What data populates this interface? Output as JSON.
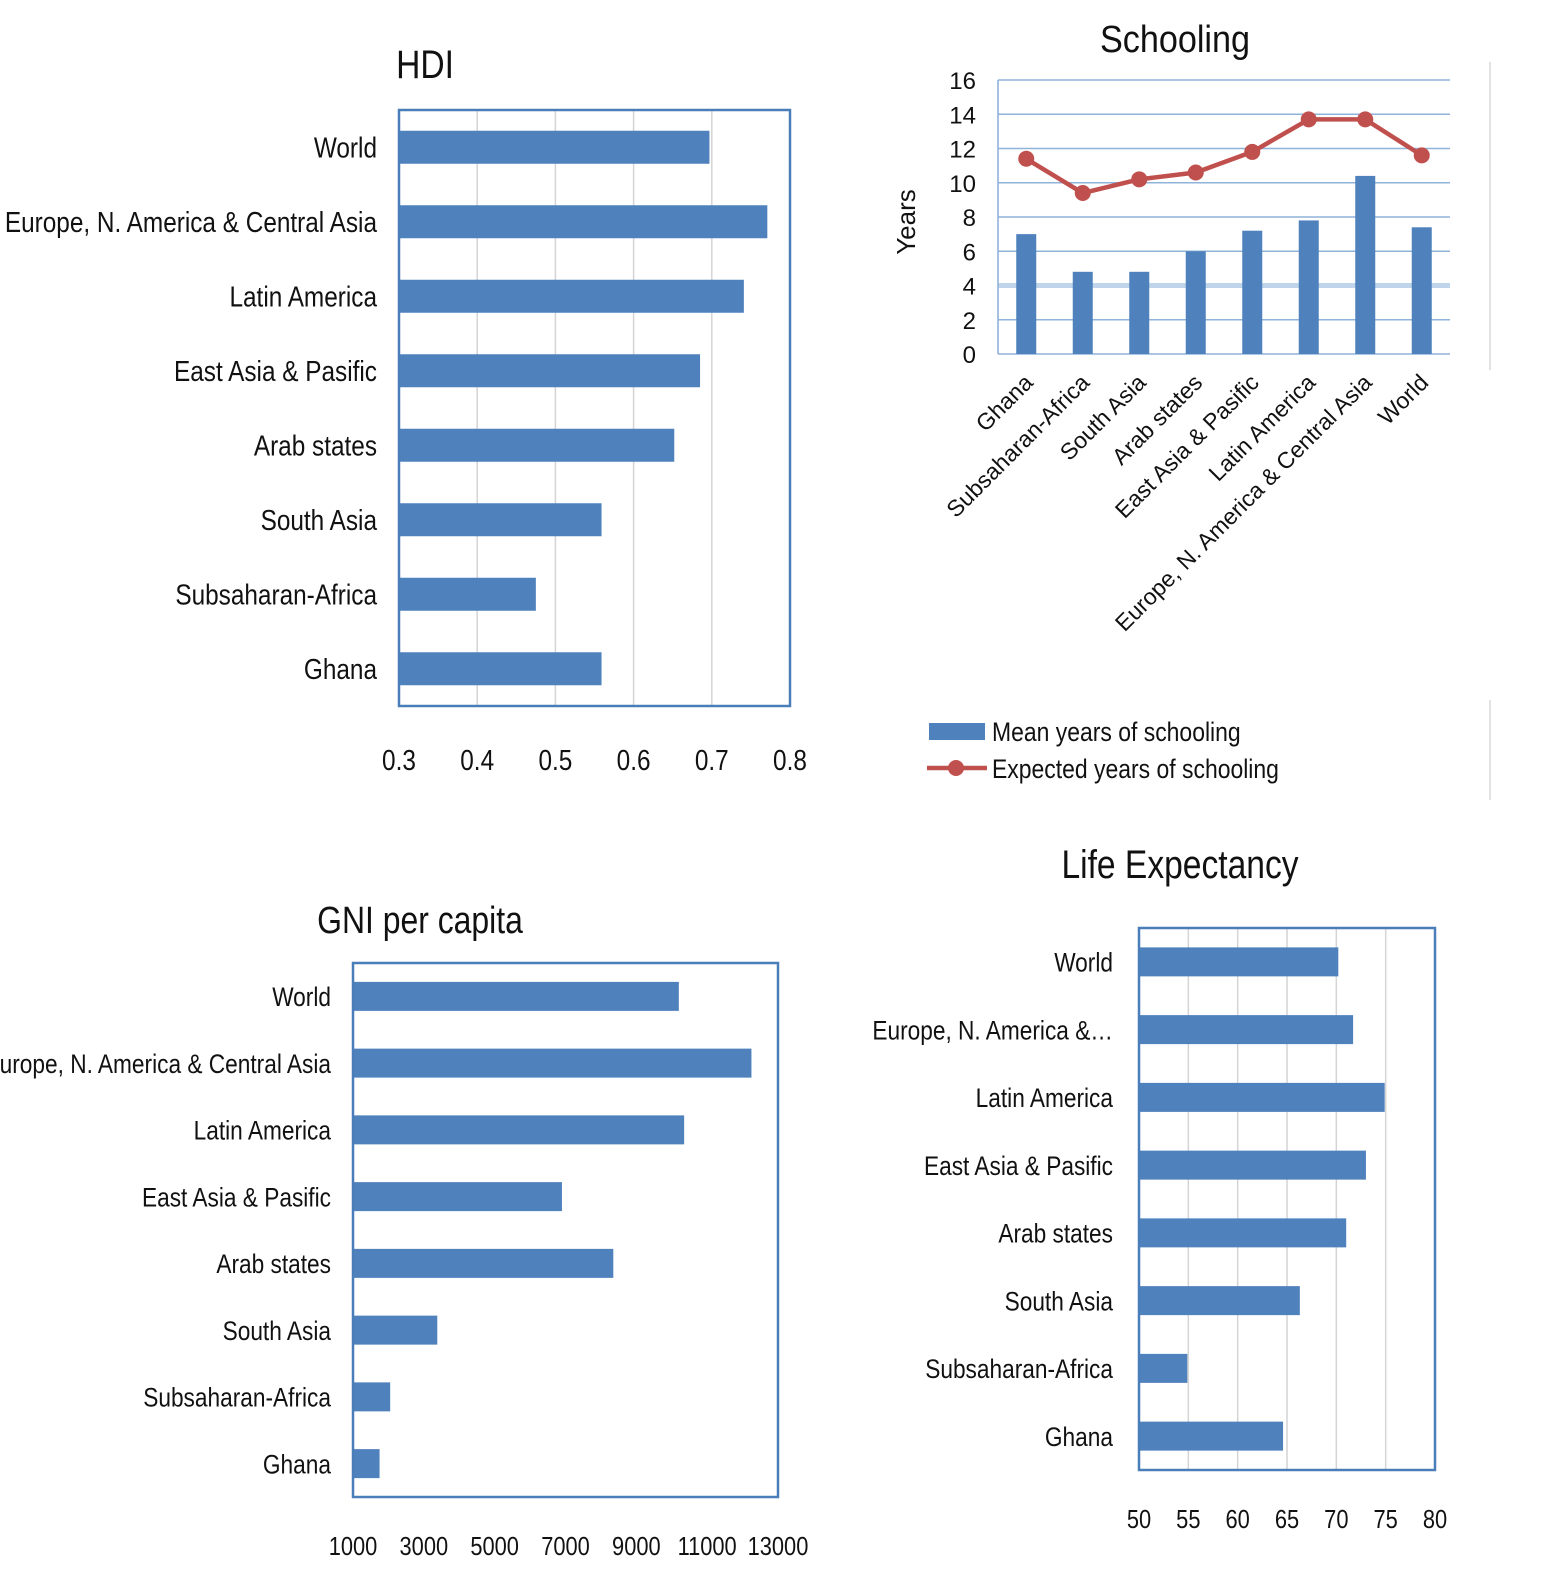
{
  "colors": {
    "bar": "#4f81bd",
    "line": "#c0504d",
    "frame": "#4a7ebb",
    "grid": "#d4d4d4",
    "hgrid": "#8fb3d9"
  },
  "chart_data": [
    {
      "id": "hdi",
      "type": "bar",
      "orientation": "horizontal",
      "title": "HDI",
      "categories": [
        "World",
        "Europe, N. America & Central Asia",
        "Latin America",
        "East Asia & Pasific",
        "Arab states",
        "South Asia",
        "Subsaharan-Africa",
        "Ghana"
      ],
      "values": [
        0.697,
        0.771,
        0.741,
        0.685,
        0.652,
        0.559,
        0.475,
        0.559
      ],
      "xlim": [
        0.3,
        0.8
      ],
      "xticks": [
        "0.3",
        "0.4",
        "0.5",
        "0.6",
        "0.7",
        "0.8"
      ],
      "xlabel": "",
      "ylabel": "",
      "grid": true
    },
    {
      "id": "schooling",
      "type": "bar",
      "title": "Schooling",
      "ylabel": "Years",
      "xlabel": "",
      "categories": [
        "Ghana",
        "Subsaharan-Africa",
        "South Asia",
        "Arab states",
        "East Asia & Pasific",
        "Latin America",
        "Europe, N. America & Central Asia",
        "World"
      ],
      "series": [
        {
          "name": "Mean years of schooling",
          "type": "bar",
          "values": [
            7.0,
            4.8,
            4.8,
            6.0,
            7.2,
            7.8,
            10.4,
            7.4
          ]
        },
        {
          "name": "Expected years of schooling",
          "type": "line",
          "values": [
            11.4,
            9.4,
            10.2,
            10.6,
            11.8,
            13.7,
            13.7,
            11.6
          ]
        }
      ],
      "ylim": [
        0,
        16
      ],
      "yticks": [
        "0",
        "2",
        "4",
        "6",
        "8",
        "10",
        "12",
        "14",
        "16"
      ],
      "legend_position": "bottom",
      "grid": true
    },
    {
      "id": "gni",
      "type": "bar",
      "orientation": "horizontal",
      "title": "GNI per capita",
      "categories": [
        "World",
        "Europe, N. America & Central Asia",
        "Latin America",
        "East Asia & Pasific",
        "Arab states",
        "South Asia",
        "Subsaharan-Africa",
        "Ghana"
      ],
      "values": [
        10200,
        12250,
        10350,
        6900,
        8350,
        3380,
        2050,
        1750
      ],
      "xlim": [
        1000,
        13000
      ],
      "xticks": [
        "1000",
        "3000",
        "5000",
        "7000",
        "9000",
        "11000",
        "13000"
      ],
      "xlabel": "",
      "ylabel": "",
      "grid": false
    },
    {
      "id": "life",
      "type": "bar",
      "orientation": "horizontal",
      "title": "Life Expectancy",
      "categories": [
        "World",
        "Europe, N. America &…",
        "Latin America",
        "East Asia & Pasific",
        "Arab states",
        "South Asia",
        "Subsaharan-Africa",
        "Ghana"
      ],
      "values": [
        70.2,
        71.7,
        74.9,
        73.0,
        71.0,
        66.3,
        54.9,
        64.6
      ],
      "xlim": [
        50,
        80
      ],
      "xticks": [
        "50",
        "55",
        "60",
        "65",
        "70",
        "75",
        "80"
      ],
      "xlabel": "",
      "ylabel": "",
      "grid": true
    }
  ]
}
